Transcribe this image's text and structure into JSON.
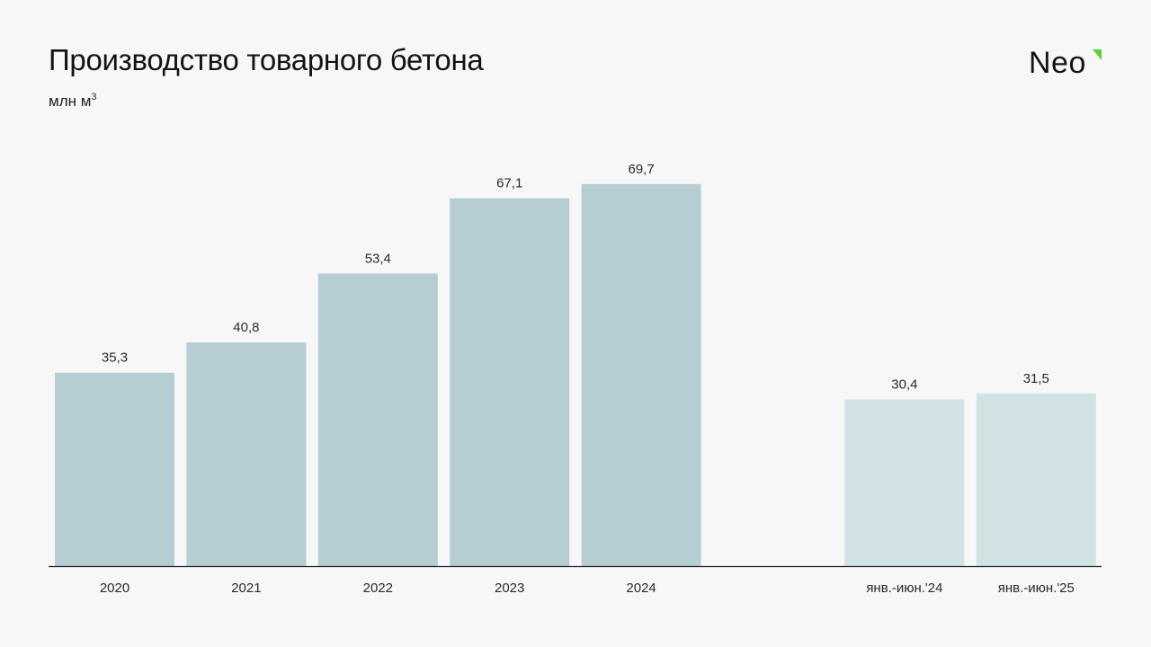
{
  "header": {
    "title": "Производство товарного бетона",
    "unit_base": "млн м",
    "unit_sup": "3"
  },
  "logo": {
    "text": "Neo",
    "accent_color": "#5fcf3a"
  },
  "colors": {
    "bar_annual": "#b6ced3",
    "bar_half_year": "#d1e2e5",
    "axis": "#1e1e1e",
    "label": "#2a2a2a"
  },
  "chart_data": {
    "type": "bar",
    "title": "Производство товарного бетона",
    "ylabel": "млн м³",
    "ylim": [
      0,
      75
    ],
    "grid": false,
    "categories": [
      "2020",
      "2021",
      "2022",
      "2023",
      "2024",
      "",
      "янв.-июн.'24",
      "янв.-июн.'25"
    ],
    "values": [
      35.3,
      40.8,
      53.4,
      67.1,
      69.7,
      null,
      30.4,
      31.5
    ],
    "value_labels": [
      "35,3",
      "40,8",
      "53,4",
      "67,1",
      "69,7",
      "",
      "30,4",
      "31,5"
    ],
    "groups": [
      "annual",
      "annual",
      "annual",
      "annual",
      "annual",
      "gap",
      "half_year",
      "half_year"
    ]
  }
}
